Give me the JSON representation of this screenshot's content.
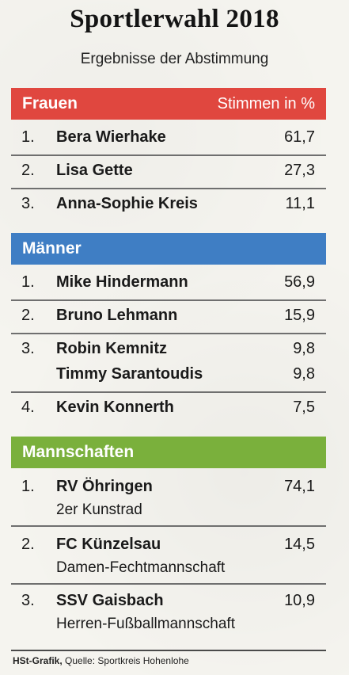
{
  "header": {
    "title": "Sportlerwahl 2018",
    "subtitle": "Ergebnisse der Abstimmung"
  },
  "sections": [
    {
      "label": "Frauen",
      "right_label": "Stimmen in %",
      "color": "#e0473f",
      "entries": [
        {
          "rank": "1.",
          "name": "Bera Wierhake",
          "value": "61,7"
        },
        {
          "rank": "2.",
          "name": "Lisa Gette",
          "value": "27,3"
        },
        {
          "rank": "3.",
          "name": "Anna-Sophie Kreis",
          "value": "11,1"
        }
      ]
    },
    {
      "label": "Männer",
      "right_label": "",
      "color": "#3f7ec4",
      "entries": [
        {
          "rank": "1.",
          "name": "Mike Hindermann",
          "value": "56,9"
        },
        {
          "rank": "2.",
          "name": "Bruno Lehmann",
          "value": "15,9"
        },
        {
          "rank": "3.",
          "name": "Robin Kemnitz",
          "value": "9,8"
        },
        {
          "rank": "",
          "name": "Timmy Sarantoudis",
          "value": "9,8"
        },
        {
          "rank": "4.",
          "name": "Kevin Konnerth",
          "value": "7,5"
        }
      ]
    },
    {
      "label": "Mannschaften",
      "right_label": "",
      "color": "#7ab03c",
      "entries": [
        {
          "rank": "1.",
          "name": "RV Öhringen",
          "sub": "2er Kunstrad",
          "value": "74,1"
        },
        {
          "rank": "2.",
          "name": "FC Künzelsau",
          "sub": "Damen-Fechtmannschaft",
          "value": "14,5"
        },
        {
          "rank": "3.",
          "name": "SSV Gaisbach",
          "sub": "Herren-Fußballmannschaft",
          "value": "10,9"
        }
      ]
    }
  ],
  "footer": {
    "brand": "HSt-Grafik,",
    "source": "Quelle: Sportkreis Hohenlohe"
  }
}
